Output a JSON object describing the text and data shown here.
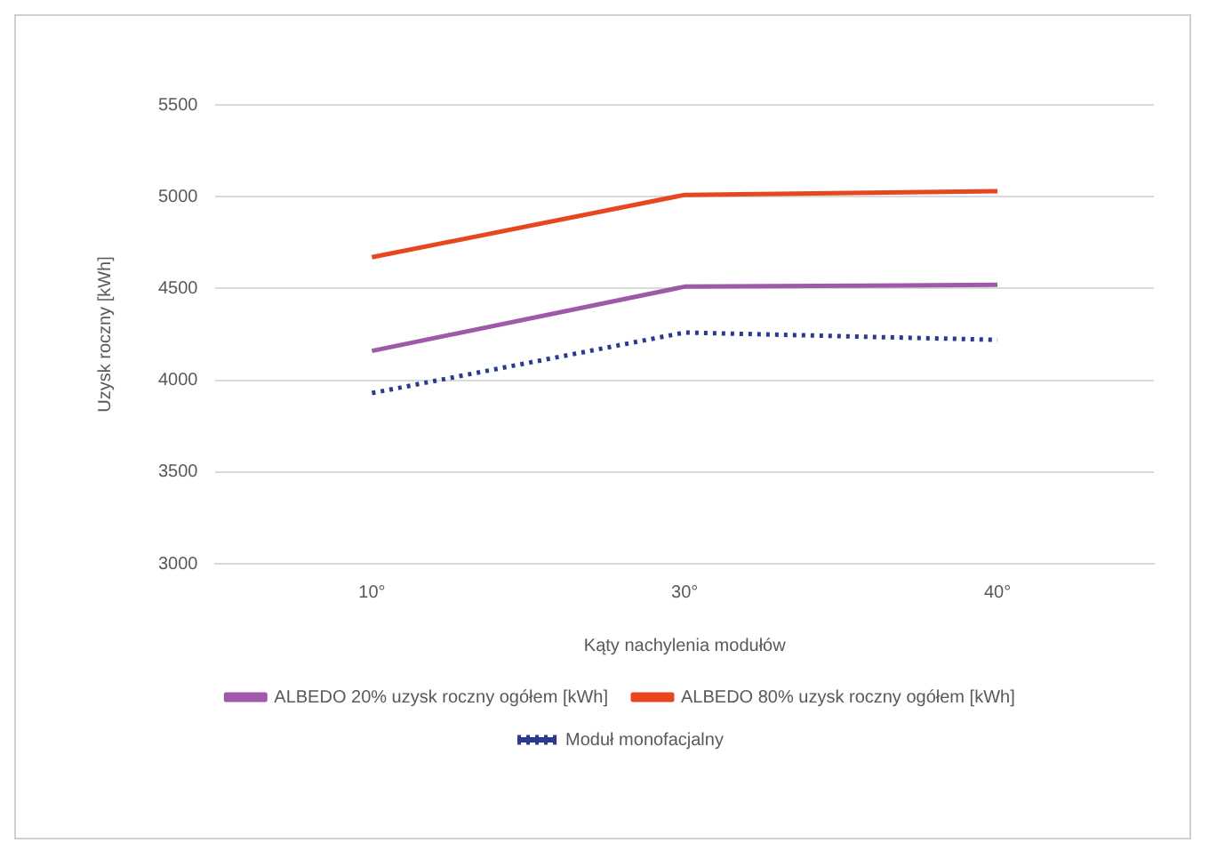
{
  "chart_data": {
    "type": "line",
    "xlabel": "Kąty nachylenia modułów",
    "ylabel": "Uzysk roczny [kWh]",
    "categories": [
      "10°",
      "30°",
      "40°"
    ],
    "series": [
      {
        "name": "ALBEDO 20% uzysk roczny ogółem [kWh]",
        "color": "#9e5aa8",
        "values": [
          4160,
          4510,
          4520
        ],
        "line_style": "solid"
      },
      {
        "name": "ALBEDO 80% uzysk roczny ogółem [kWh]",
        "color": "#e8461e",
        "values": [
          4670,
          5010,
          5030
        ],
        "line_style": "solid"
      },
      {
        "name": "Moduł monofacjalny",
        "color": "#2b3a8f",
        "values": [
          3930,
          4260,
          4220
        ],
        "line_style": "dotted"
      }
    ],
    "ylim": [
      3000,
      5500
    ],
    "yticks": [
      3000,
      3500,
      4000,
      4500,
      5000,
      5500
    ],
    "grid": "y",
    "legend": "bottom",
    "marker": "none"
  }
}
